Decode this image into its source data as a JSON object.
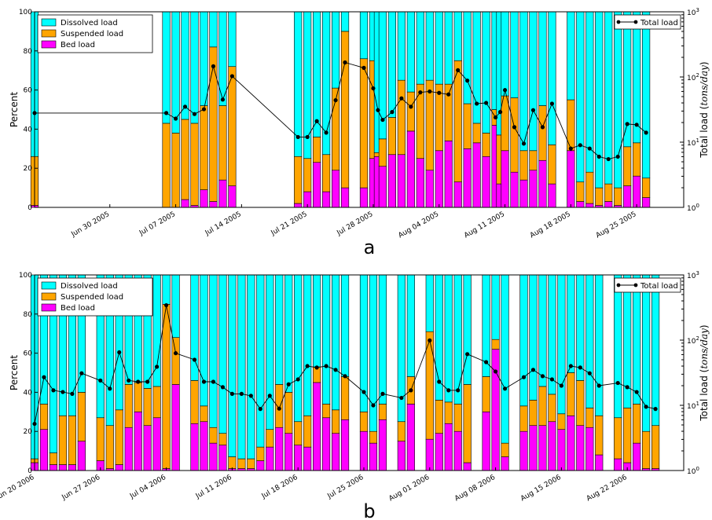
{
  "colors": {
    "dissolved": "#00ffff",
    "suspended": "#ffa500",
    "bed": "#ff00ff",
    "total_line": "#000000"
  },
  "chart_data": [
    {
      "type": "bar",
      "stacked": true,
      "panel_label": "a",
      "ylabel": "Percent",
      "ylabel_right": "Total load (tons/day)",
      "ylim": [
        0,
        100
      ],
      "yticks": [
        0,
        20,
        40,
        60,
        80,
        100
      ],
      "y2scale": "log",
      "y2lim": [
        1,
        1000
      ],
      "y2ticks": [
        "10^0",
        "10^1",
        "10^2",
        "10^3"
      ],
      "xlim": [
        "2005-06-22",
        "2005-08-30"
      ],
      "xticks": [
        "Jun 30 2005",
        "Jul 07 2005",
        "Jul 14 2005",
        "Jul 21 2005",
        "Jul 28 2005",
        "Aug 04 2005",
        "Aug 11 2005",
        "Aug 18 2005",
        "Aug 25 2005"
      ],
      "legend": [
        "Dissolved load",
        "Suspended load",
        "Bed load"
      ],
      "legend_right": "Total load",
      "x": [
        "2005-06-22",
        "2005-07-06",
        "2005-07-07",
        "2005-07-08",
        "2005-07-09",
        "2005-07-10",
        "2005-07-11",
        "2005-07-12",
        "2005-07-13",
        "2005-07-20",
        "2005-07-21",
        "2005-07-22",
        "2005-07-23",
        "2005-07-24",
        "2005-07-25",
        "2005-07-27",
        "2005-07-28",
        "2005-07-28",
        "2005-07-29",
        "2005-07-30",
        "2005-07-31",
        "2005-08-01",
        "2005-08-02",
        "2005-08-03",
        "2005-08-04",
        "2005-08-05",
        "2005-08-06",
        "2005-08-07",
        "2005-08-08",
        "2005-08-09",
        "2005-08-10",
        "2005-08-10",
        "2005-08-11",
        "2005-08-12",
        "2005-08-13",
        "2005-08-14",
        "2005-08-15",
        "2005-08-16",
        "2005-08-18",
        "2005-08-19",
        "2005-08-20",
        "2005-08-21",
        "2005-08-22",
        "2005-08-23",
        "2005-08-24",
        "2005-08-25",
        "2005-08-26"
      ],
      "bed": [
        1,
        0,
        0,
        4,
        1,
        9,
        3,
        14,
        11,
        2,
        8,
        23,
        8,
        19,
        10,
        10,
        25,
        26,
        21,
        27,
        27,
        39,
        25,
        19,
        29,
        34,
        13,
        30,
        33,
        26,
        42,
        12,
        29,
        18,
        14,
        19,
        24,
        12,
        29,
        3,
        2,
        1,
        3,
        1,
        11,
        16,
        5
      ],
      "suspended": [
        25,
        43,
        38,
        41,
        42,
        43,
        79,
        38,
        61,
        24,
        17,
        13,
        19,
        42,
        80,
        66,
        50,
        2,
        14,
        19,
        38,
        20,
        38,
        46,
        34,
        29,
        62,
        23,
        10,
        12,
        8,
        25,
        28,
        38,
        15,
        10,
        28,
        20,
        26,
        10,
        16,
        9,
        9,
        9,
        20,
        17,
        10
      ],
      "dissolved": [
        74,
        57,
        62,
        55,
        57,
        48,
        18,
        48,
        28,
        74,
        75,
        64,
        73,
        39,
        10,
        24,
        25,
        72,
        65,
        54,
        35,
        41,
        37,
        35,
        37,
        37,
        25,
        47,
        57,
        62,
        50,
        63,
        43,
        44,
        71,
        71,
        48,
        68,
        45,
        87,
        82,
        90,
        88,
        90,
        69,
        67,
        85
      ],
      "total": [
        28,
        28,
        23,
        35,
        27,
        32,
        146,
        45,
        103,
        12,
        12,
        21,
        14,
        44,
        167,
        138,
        67,
        31,
        22,
        29,
        47,
        35,
        58,
        60,
        57,
        54,
        127,
        88,
        39,
        40,
        24,
        29,
        63,
        17,
        9.5,
        31,
        17,
        39,
        8,
        9,
        8,
        6,
        5.5,
        6,
        19,
        18.5,
        14
      ]
    },
    {
      "type": "bar",
      "stacked": true,
      "panel_label": "b",
      "ylabel": "Percent",
      "ylabel_right": "Total load (tons/day)",
      "ylim": [
        0,
        100
      ],
      "yticks": [
        0,
        20,
        40,
        60,
        80,
        100
      ],
      "y2scale": "log",
      "y2lim": [
        1,
        1000
      ],
      "y2ticks": [
        "10^0",
        "10^1",
        "10^2",
        "10^3"
      ],
      "xlim": [
        "2006-06-20",
        "2006-08-28"
      ],
      "xticks": [
        "Jun 20 2006",
        "Jun 27 2006",
        "Jul 04 2006",
        "Jul 11 2006",
        "Jul 18 2006",
        "Jul 25 2006",
        "Aug 01 2006",
        "Aug 08 2006",
        "Aug 15 2006",
        "Aug 22 2006"
      ],
      "legend": [
        "Dissolved load",
        "Suspended load",
        "Bed load"
      ],
      "legend_right": "Total load",
      "x": [
        "2006-06-20",
        "2006-06-21",
        "2006-06-22",
        "2006-06-23",
        "2006-06-24",
        "2006-06-25",
        "2006-06-27",
        "2006-06-28",
        "2006-06-29",
        "2006-06-30",
        "2006-07-01",
        "2006-07-02",
        "2006-07-03",
        "2006-07-04",
        "2006-07-05",
        "2006-07-07",
        "2006-07-08",
        "2006-07-09",
        "2006-07-10",
        "2006-07-11",
        "2006-07-12",
        "2006-07-13",
        "2006-07-14",
        "2006-07-15",
        "2006-07-16",
        "2006-07-17",
        "2006-07-18",
        "2006-07-19",
        "2006-07-20",
        "2006-07-21",
        "2006-07-22",
        "2006-07-23",
        "2006-07-25",
        "2006-07-26",
        "2006-07-27",
        "2006-07-29",
        "2006-07-30",
        "2006-08-01",
        "2006-08-02",
        "2006-08-03",
        "2006-08-04",
        "2006-08-05",
        "2006-08-07",
        "2006-08-08",
        "2006-08-09",
        "2006-08-11",
        "2006-08-12",
        "2006-08-13",
        "2006-08-14",
        "2006-08-15",
        "2006-08-16",
        "2006-08-17",
        "2006-08-18",
        "2006-08-19",
        "2006-08-21",
        "2006-08-22",
        "2006-08-23",
        "2006-08-24",
        "2006-08-25"
      ],
      "bed": [
        4,
        21,
        3,
        3,
        3,
        15,
        5,
        1,
        3,
        22,
        30,
        23,
        27,
        1,
        44,
        24,
        25,
        14,
        13,
        1,
        1,
        1,
        5,
        12,
        22,
        19,
        13,
        12,
        45,
        27,
        19,
        26,
        20,
        14,
        26,
        15,
        34,
        16,
        19,
        24,
        20,
        4,
        30,
        62,
        7,
        20,
        23,
        23,
        25,
        21,
        28,
        23,
        22,
        8,
        6,
        4,
        14,
        1,
        1
      ],
      "suspended": [
        2,
        13,
        6,
        25,
        25,
        25,
        22,
        22,
        28,
        22,
        15,
        19,
        16,
        84,
        24,
        22,
        8,
        8,
        6,
        6,
        5,
        5,
        7,
        9,
        22,
        21,
        12,
        16,
        8,
        7,
        12,
        22,
        10,
        6,
        8,
        10,
        14,
        55,
        17,
        11,
        14,
        40,
        18,
        5,
        7,
        13,
        13,
        20,
        14,
        8,
        22,
        23,
        10,
        20,
        21,
        28,
        20,
        19,
        22
      ],
      "dissolved": [
        94,
        66,
        91,
        72,
        72,
        60,
        73,
        77,
        69,
        56,
        55,
        58,
        57,
        15,
        32,
        54,
        67,
        78,
        81,
        93,
        94,
        94,
        88,
        79,
        56,
        60,
        75,
        72,
        47,
        66,
        69,
        52,
        70,
        80,
        66,
        75,
        52,
        29,
        64,
        65,
        66,
        56,
        52,
        33,
        86,
        67,
        64,
        57,
        61,
        71,
        50,
        54,
        68,
        72,
        73,
        68,
        66,
        80,
        77
      ],
      "total": [
        5.2,
        27,
        17,
        16,
        15,
        31,
        24,
        18,
        65,
        24,
        23,
        23,
        39,
        343,
        63,
        50,
        23,
        23,
        19,
        15,
        15,
        14,
        8.8,
        14,
        8.9,
        21,
        25,
        40,
        38,
        40,
        35,
        28,
        16,
        10,
        15,
        13,
        17,
        99,
        23,
        17,
        17,
        61,
        46,
        33,
        18,
        27,
        35,
        28,
        25,
        20,
        40,
        38,
        31,
        20,
        22,
        19,
        16,
        9.5,
        8.8
      ]
    }
  ]
}
